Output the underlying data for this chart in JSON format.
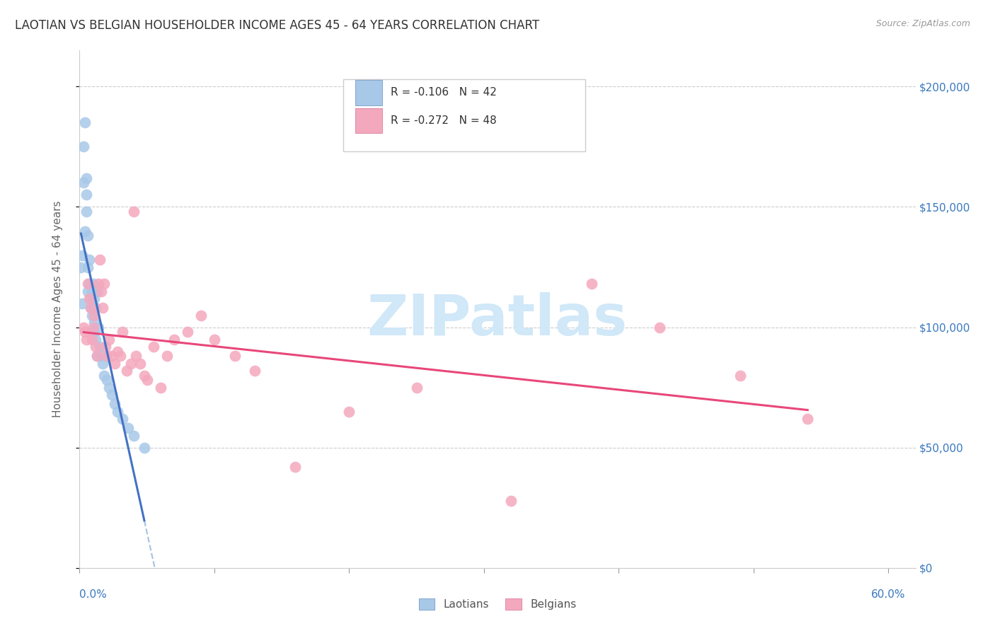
{
  "title": "LAOTIAN VS BELGIAN HOUSEHOLDER INCOME AGES 45 - 64 YEARS CORRELATION CHART",
  "source": "Source: ZipAtlas.com",
  "ylabel": "Householder Income Ages 45 - 64 years",
  "ytick_values": [
    0,
    50000,
    100000,
    150000,
    200000
  ],
  "xlim": [
    0.0,
    0.62
  ],
  "ylim": [
    0,
    215000
  ],
  "laotian_color": "#a8c8e8",
  "belgian_color": "#f4a8be",
  "laotian_line_color": "#4472c4",
  "belgian_line_color": "#e8477a",
  "laotian_dash_color": "#88aad8",
  "legend_laotian_R": "-0.106",
  "legend_laotian_N": "42",
  "legend_belgian_R": "-0.272",
  "legend_belgian_N": "48",
  "watermark": "ZIPatlas",
  "watermark_color": "#d0e8f8",
  "laotian_x": [
    0.001,
    0.002,
    0.002,
    0.003,
    0.003,
    0.004,
    0.004,
    0.005,
    0.005,
    0.005,
    0.006,
    0.006,
    0.006,
    0.007,
    0.007,
    0.008,
    0.008,
    0.009,
    0.009,
    0.01,
    0.01,
    0.01,
    0.011,
    0.011,
    0.012,
    0.012,
    0.013,
    0.013,
    0.014,
    0.015,
    0.016,
    0.017,
    0.018,
    0.02,
    0.022,
    0.024,
    0.026,
    0.028,
    0.032,
    0.036,
    0.04,
    0.048
  ],
  "laotian_y": [
    125000,
    130000,
    110000,
    160000,
    175000,
    140000,
    185000,
    155000,
    148000,
    162000,
    138000,
    125000,
    115000,
    118000,
    128000,
    112000,
    108000,
    115000,
    105000,
    118000,
    108000,
    98000,
    112000,
    102000,
    108000,
    95000,
    115000,
    88000,
    100000,
    92000,
    88000,
    85000,
    80000,
    78000,
    75000,
    72000,
    68000,
    65000,
    62000,
    58000,
    55000,
    50000
  ],
  "belgian_x": [
    0.003,
    0.004,
    0.005,
    0.006,
    0.007,
    0.008,
    0.009,
    0.01,
    0.011,
    0.012,
    0.013,
    0.014,
    0.015,
    0.016,
    0.017,
    0.018,
    0.019,
    0.02,
    0.022,
    0.024,
    0.026,
    0.028,
    0.03,
    0.032,
    0.035,
    0.038,
    0.04,
    0.042,
    0.045,
    0.048,
    0.05,
    0.055,
    0.06,
    0.065,
    0.07,
    0.08,
    0.09,
    0.1,
    0.115,
    0.13,
    0.16,
    0.2,
    0.25,
    0.32,
    0.38,
    0.43,
    0.49,
    0.54
  ],
  "belgian_y": [
    100000,
    98000,
    95000,
    118000,
    112000,
    108000,
    95000,
    100000,
    105000,
    92000,
    88000,
    118000,
    128000,
    115000,
    108000,
    118000,
    92000,
    88000,
    95000,
    88000,
    85000,
    90000,
    88000,
    98000,
    82000,
    85000,
    148000,
    88000,
    85000,
    80000,
    78000,
    92000,
    75000,
    88000,
    95000,
    98000,
    105000,
    95000,
    88000,
    82000,
    42000,
    65000,
    75000,
    28000,
    118000,
    100000,
    80000,
    62000
  ]
}
